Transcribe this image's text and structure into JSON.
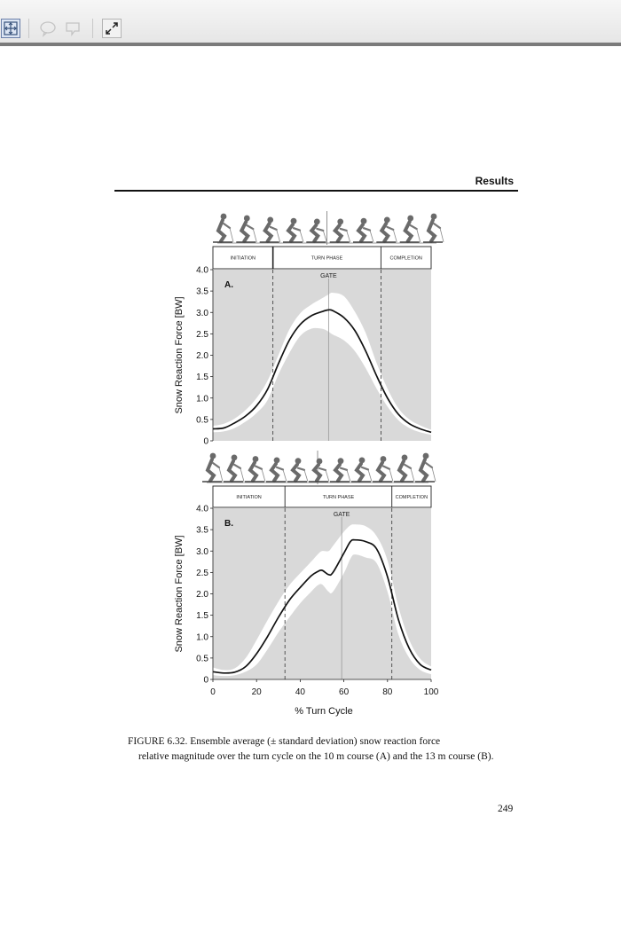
{
  "toolbar": {
    "buttons": [
      {
        "icon": "fit-page-icon"
      },
      {
        "icon": "comment-icon"
      },
      {
        "icon": "note-icon"
      },
      {
        "icon": "expand-icon"
      }
    ]
  },
  "header": {
    "section_title": "Results"
  },
  "figure": {
    "caption_line1": "FIGURE 6.32.  Ensemble average (± standard deviation) snow reaction force",
    "caption_rest": "relative magnitude over the turn cycle on the 10 m course (A) and the 13 m course (B).",
    "x_label": "% Turn Cycle",
    "x_ticks": [
      "0",
      "20",
      "40",
      "60",
      "80",
      "100"
    ]
  },
  "page_number": "249",
  "chart_data": [
    {
      "type": "line",
      "panel_label": "A.",
      "ylabel": "Snow Reaction Force [BW]",
      "xlabel": "",
      "xlim": [
        0,
        100
      ],
      "ylim": [
        0,
        4.0
      ],
      "y_ticks": [
        "0",
        "0.5",
        "1.0",
        "1.5",
        "2.0",
        "2.5",
        "3.0",
        "3.5",
        "4.0"
      ],
      "phases": [
        "INITIATION",
        "TURN PHASE",
        "COMPLETION"
      ],
      "phase_bounds": [
        27.5,
        77
      ],
      "gate_label": "GATE",
      "gate_x": 53,
      "x": [
        0,
        5,
        10,
        15,
        20,
        25,
        30,
        35,
        40,
        45,
        50,
        53,
        55,
        60,
        65,
        70,
        75,
        80,
        85,
        90,
        95,
        100
      ],
      "mean": [
        0.28,
        0.3,
        0.42,
        0.58,
        0.82,
        1.2,
        1.8,
        2.35,
        2.72,
        2.92,
        3.02,
        3.06,
        3.04,
        2.88,
        2.58,
        2.1,
        1.52,
        1.0,
        0.62,
        0.4,
        0.28,
        0.2
      ],
      "upper": [
        0.35,
        0.4,
        0.52,
        0.72,
        1.0,
        1.4,
        2.0,
        2.6,
        2.98,
        3.18,
        3.33,
        3.42,
        3.46,
        3.38,
        3.02,
        2.52,
        1.82,
        1.22,
        0.76,
        0.5,
        0.36,
        0.26
      ],
      "lower": [
        0.2,
        0.22,
        0.3,
        0.45,
        0.65,
        0.95,
        1.55,
        2.05,
        2.45,
        2.62,
        2.62,
        2.55,
        2.48,
        2.35,
        2.1,
        1.7,
        1.22,
        0.8,
        0.48,
        0.3,
        0.2,
        0.14
      ]
    },
    {
      "type": "line",
      "panel_label": "B.",
      "ylabel": "Snow Reaction Force [BW]",
      "xlabel": "% Turn Cycle",
      "xlim": [
        0,
        100
      ],
      "ylim": [
        0,
        4.0
      ],
      "y_ticks": [
        "0",
        "0.5",
        "1.0",
        "1.5",
        "2.0",
        "2.5",
        "3.0",
        "3.5",
        "4.0"
      ],
      "phases": [
        "INITIATION",
        "TURN PHASE",
        "COMPLETION"
      ],
      "phase_bounds": [
        33,
        82
      ],
      "gate_label": "GATE",
      "gate_x": 59,
      "x": [
        0,
        5,
        10,
        15,
        20,
        25,
        30,
        35,
        40,
        45,
        48,
        50,
        53,
        55,
        60,
        63,
        65,
        70,
        75,
        80,
        85,
        90,
        95,
        100
      ],
      "mean": [
        0.18,
        0.15,
        0.17,
        0.3,
        0.6,
        1.0,
        1.45,
        1.85,
        2.15,
        2.42,
        2.52,
        2.55,
        2.45,
        2.5,
        2.95,
        3.22,
        3.26,
        3.22,
        3.05,
        2.4,
        1.4,
        0.72,
        0.35,
        0.22
      ],
      "upper": [
        0.28,
        0.22,
        0.26,
        0.5,
        0.92,
        1.38,
        1.82,
        2.2,
        2.48,
        2.75,
        2.92,
        3.0,
        3.0,
        3.12,
        3.45,
        3.6,
        3.62,
        3.58,
        3.35,
        2.78,
        1.7,
        0.92,
        0.48,
        0.3
      ],
      "lower": [
        0.1,
        0.08,
        0.1,
        0.18,
        0.35,
        0.7,
        1.1,
        1.45,
        1.78,
        2.05,
        2.2,
        2.22,
        2.05,
        2.05,
        2.48,
        2.82,
        2.92,
        2.85,
        2.72,
        2.05,
        1.05,
        0.5,
        0.22,
        0.12
      ]
    }
  ]
}
